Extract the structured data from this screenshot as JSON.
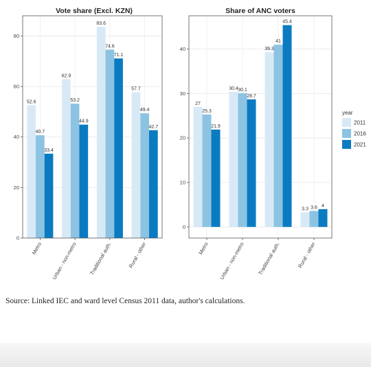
{
  "chart_data": [
    {
      "type": "bar",
      "title": "Vote share (Excl. KZN)",
      "categories": [
        "Metro",
        "Urban - non-metro",
        "Traditional auth.",
        "Rural - other"
      ],
      "series": [
        {
          "name": "2011",
          "values": [
            52.6,
            62.9,
            83.6,
            57.7
          ]
        },
        {
          "name": "2016",
          "values": [
            40.7,
            53.2,
            74.6,
            49.4
          ]
        },
        {
          "name": "2021",
          "values": [
            33.4,
            44.9,
            71.1,
            42.7
          ]
        }
      ],
      "ylim": [
        0,
        88
      ],
      "yticks": [
        0,
        20,
        40,
        60,
        80
      ],
      "grid": true
    },
    {
      "type": "bar",
      "title": "Share of ANC voters",
      "categories": [
        "Metro",
        "Urban - non-metro",
        "Traditional auth.",
        "Rural - other"
      ],
      "series": [
        {
          "name": "2011",
          "values": [
            27,
            30.4,
            39.3,
            3.3
          ]
        },
        {
          "name": "2016",
          "values": [
            25.3,
            30.1,
            41,
            3.6
          ]
        },
        {
          "name": "2021",
          "values": [
            21.9,
            28.7,
            45.4,
            4
          ]
        }
      ],
      "ylim": [
        -2.5,
        47.5
      ],
      "yticks": [
        0,
        10,
        20,
        30,
        40
      ],
      "grid": true
    }
  ],
  "legend": {
    "title": "year",
    "placement": "right",
    "items": [
      "2011",
      "2016",
      "2021"
    ]
  },
  "colors": {
    "2011": "#d8e9f6",
    "2016": "#8cc3e2",
    "2021": "#0b7bc1"
  },
  "source": "Source: Linked IEC and ward level Census 2011 data, author's calculations."
}
